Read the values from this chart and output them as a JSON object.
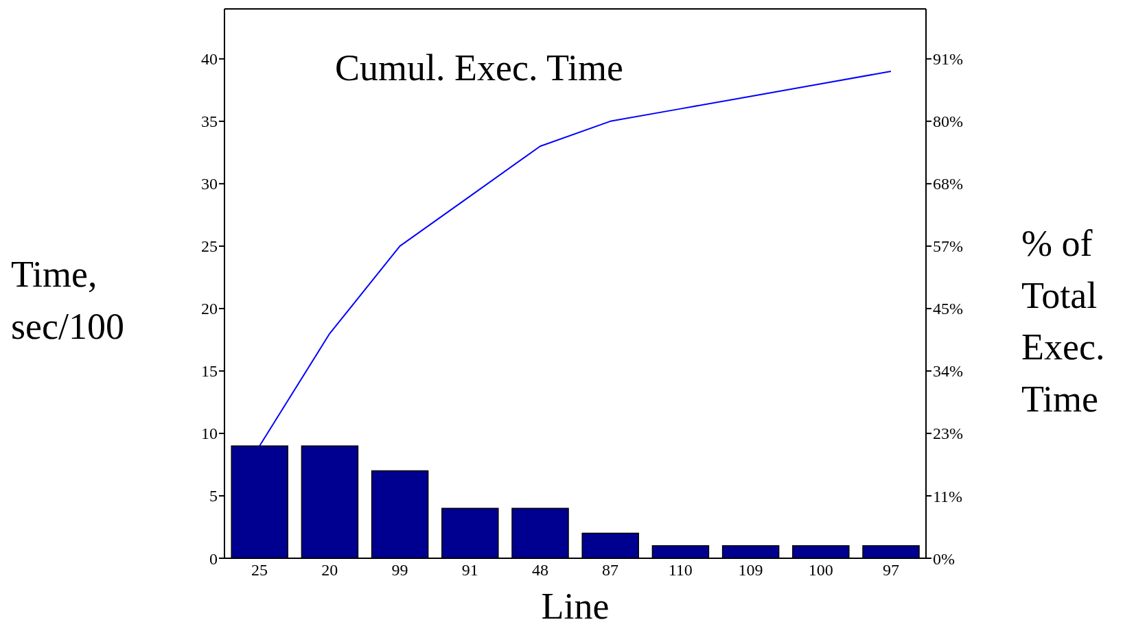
{
  "chart_data": {
    "type": "bar",
    "xlabel": "Line",
    "ylabel": "Time, sec/100",
    "y2label": "% of Total Exec. Time",
    "annotations": [
      "Cumul. Exec. Time"
    ],
    "categories": [
      "25",
      "20",
      "99",
      "91",
      "48",
      "87",
      "110",
      "109",
      "100",
      "97"
    ],
    "series": [
      {
        "color": "#000090",
        "values": [
          9,
          9,
          7,
          4,
          4,
          2,
          1,
          1,
          1,
          1
        ]
      },
      {
        "type": "line",
        "color": "#0000ff",
        "marker": "none",
        "values": [
          9,
          18,
          25,
          29,
          33,
          35,
          36,
          37,
          38,
          39
        ]
      }
    ],
    "ylim": [
      0,
      44
    ],
    "yticks": [
      0,
      5,
      10,
      15,
      20,
      25,
      30,
      35,
      40
    ],
    "y2lim": [
      0,
      100
    ],
    "y2ticks": [
      {
        "value": 0,
        "label": "0%"
      },
      {
        "value": 11.36,
        "label": "11%"
      },
      {
        "value": 22.73,
        "label": "23%"
      },
      {
        "value": 34.09,
        "label": "34%"
      },
      {
        "value": 45.45,
        "label": "45%"
      },
      {
        "value": 56.82,
        "label": "57%"
      },
      {
        "value": 68.18,
        "label": "68%"
      },
      {
        "value": 79.55,
        "label": "80%"
      },
      {
        "value": 90.91,
        "label": "91%"
      }
    ],
    "grid": false,
    "legend": false
  }
}
